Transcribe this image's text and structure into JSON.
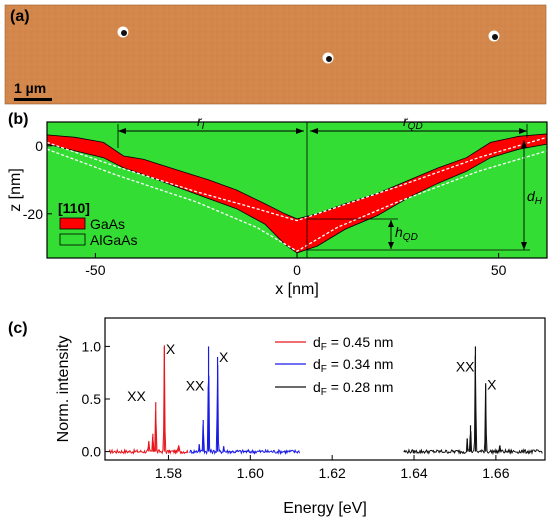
{
  "panels": {
    "a": {
      "label": "(a)",
      "scale_bar": "1 µm",
      "surface_color": "#d3874a"
    },
    "b": {
      "label": "(b)"
    },
    "c": {
      "label": "(c)"
    }
  },
  "chart_data": [
    {
      "type": "area",
      "panel": "(b)",
      "xlabel": "x [nm]",
      "ylabel": "z [nm]",
      "xlim": [
        -62,
        62
      ],
      "ylim": [
        -33,
        7
      ],
      "x_ticks": [
        -50,
        0,
        50
      ],
      "y_ticks": [
        0,
        -20
      ],
      "background": "#33dd33",
      "legend": {
        "title": "[110]",
        "items": [
          {
            "name": "GaAs",
            "color": "#ff0000"
          },
          {
            "name": "AlGaAs",
            "color": "#33dd33"
          }
        ],
        "placement": "left"
      },
      "annotations": {
        "r_I": "r",
        "r_I_sub": "I",
        "r_QD": "r",
        "r_QD_sub": "QD",
        "d_H": "d",
        "d_H_sub": "H",
        "h_QD": "h",
        "h_QD_sub": "QD"
      },
      "gaas_top": [
        [
          -62,
          3.2
        ],
        [
          -55,
          2.5
        ],
        [
          -48,
          1.0
        ],
        [
          -43,
          -3.0
        ],
        [
          -38,
          -4.0
        ],
        [
          -30,
          -7.0
        ],
        [
          -22,
          -10.0
        ],
        [
          -15,
          -13.0
        ],
        [
          -8,
          -17.0
        ],
        [
          -3,
          -20.0
        ],
        [
          0,
          -21.5
        ],
        [
          5,
          -20.0
        ],
        [
          12,
          -17.0
        ],
        [
          20,
          -14.0
        ],
        [
          28,
          -10.0
        ],
        [
          35,
          -6.5
        ],
        [
          42,
          -3.5
        ],
        [
          48,
          1.0
        ],
        [
          55,
          2.8
        ],
        [
          62,
          3.5
        ]
      ],
      "gaas_bottom": [
        [
          -62,
          0.5
        ],
        [
          -55,
          -1.5
        ],
        [
          -48,
          -3.5
        ],
        [
          -43,
          -6.5
        ],
        [
          -38,
          -8.5
        ],
        [
          -30,
          -12.0
        ],
        [
          -22,
          -15.5
        ],
        [
          -15,
          -18.5
        ],
        [
          -8,
          -23.0
        ],
        [
          -3,
          -29.0
        ],
        [
          0,
          -31.5
        ],
        [
          5,
          -29.5
        ],
        [
          12,
          -24.5
        ],
        [
          20,
          -20.5
        ],
        [
          28,
          -15.0
        ],
        [
          35,
          -11.0
        ],
        [
          42,
          -7.5
        ],
        [
          48,
          -3.5
        ],
        [
          55,
          -1.0
        ],
        [
          62,
          0.5
        ]
      ],
      "dashed_top": [
        [
          -62,
          1.0
        ],
        [
          -45,
          -6.0
        ],
        [
          -25,
          -13.5
        ],
        [
          -10,
          -18.5
        ],
        [
          0,
          -22.0
        ],
        [
          10,
          -18.0
        ],
        [
          25,
          -12.0
        ],
        [
          45,
          -3.5
        ],
        [
          62,
          2.5
        ]
      ],
      "dashed_bottom": [
        [
          -62,
          -1.0
        ],
        [
          -45,
          -8.5
        ],
        [
          -25,
          -16.5
        ],
        [
          -10,
          -24.0
        ],
        [
          0,
          -31.0
        ],
        [
          10,
          -24.0
        ],
        [
          25,
          -16.5
        ],
        [
          45,
          -7.5
        ],
        [
          62,
          -1.5
        ]
      ]
    },
    {
      "type": "line",
      "panel": "(c)",
      "xlabel": "Energy [eV]",
      "ylabel": "Norm. intensity",
      "xlim": [
        1.5645,
        1.672
      ],
      "ylim": [
        -0.08,
        1.27
      ],
      "x_ticks": [
        1.58,
        1.6,
        1.62,
        1.64,
        1.66
      ],
      "x_tick_labels": [
        "1.58",
        "1.60",
        "1.62",
        "1.64",
        "1.66"
      ],
      "y_ticks": [
        0.0,
        0.5,
        1.0
      ],
      "y_tick_labels": [
        "0.0",
        "0.5",
        "1.0"
      ],
      "series": [
        {
          "name": "d",
          "name_sub": "F",
          "name_suffix": " = 0.45 nm",
          "color": "#e8161c",
          "range": [
            1.5655,
            1.5848
          ],
          "peaks": [
            [
              1.5752,
              0.09
            ],
            [
              1.5762,
              0.17
            ],
            [
              1.5769,
              0.47
            ],
            [
              1.579,
              1.0
            ],
            [
              1.5825,
              0.06
            ]
          ],
          "peak_labels": [
            {
              "text": "XX",
              "x": 1.5722,
              "y": 0.48
            },
            {
              "text": "X",
              "x": 1.5805,
              "y": 0.93
            }
          ]
        },
        {
          "name": "d",
          "name_sub": "F",
          "name_suffix": " = 0.34 nm",
          "color": "#1a1ae6",
          "range": [
            1.5852,
            1.6122
          ],
          "peaks": [
            [
              1.5875,
              0.07
            ],
            [
              1.5885,
              0.3
            ],
            [
              1.5898,
              1.0
            ],
            [
              1.592,
              0.9
            ],
            [
              1.5935,
              0.05
            ]
          ],
          "peak_labels": [
            {
              "text": "XX",
              "x": 1.5865,
              "y": 0.58
            },
            {
              "text": "X",
              "x": 1.5935,
              "y": 0.85
            }
          ]
        },
        {
          "name": "d",
          "name_sub": "F",
          "name_suffix": " = 0.28 nm",
          "color": "#111111",
          "range": [
            1.6375,
            1.6715
          ],
          "peaks": [
            [
              1.653,
              0.12
            ],
            [
              1.6538,
              0.25
            ],
            [
              1.655,
              1.0
            ],
            [
              1.6575,
              0.65
            ],
            [
              1.661,
              0.06
            ]
          ],
          "peak_labels": [
            {
              "text": "XX",
              "x": 1.6525,
              "y": 0.76
            },
            {
              "text": "X",
              "x": 1.659,
              "y": 0.59
            }
          ]
        }
      ]
    }
  ]
}
